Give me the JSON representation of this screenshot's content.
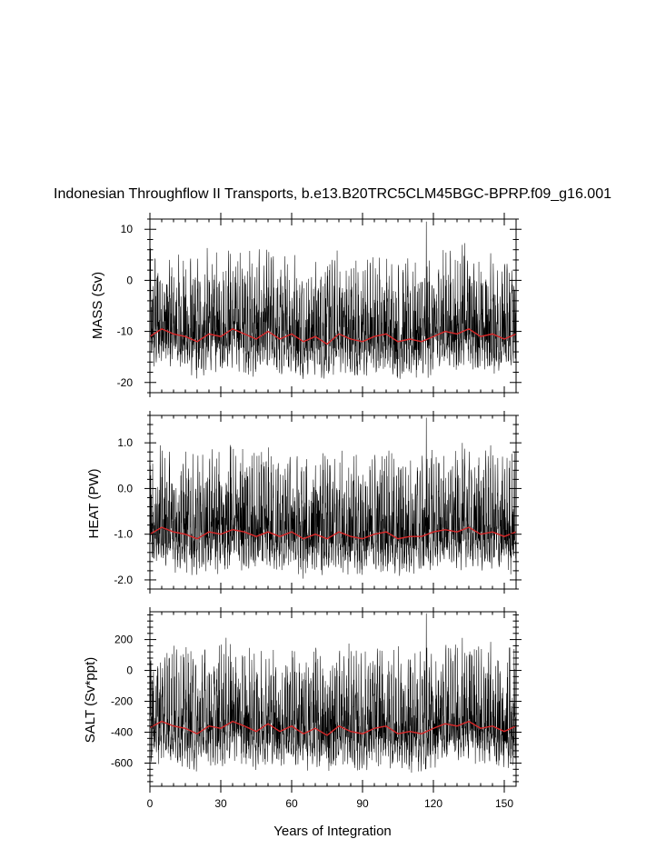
{
  "title": "Indonesian Throughflow II Transports, b.e13.B20TRC5CLM45BGC-BPRP.f09_g16.001",
  "xlabel": "Years of Integration",
  "xlim": [
    0,
    155
  ],
  "xticks": [
    0,
    30,
    60,
    90,
    120,
    150
  ],
  "xtick_labels": [
    "0",
    "30",
    "60",
    "90",
    "120",
    "150"
  ],
  "colors": {
    "monthly": "#000000",
    "annual": "#d62728",
    "frame": "#000000",
    "background": "#ffffff"
  },
  "chart_data": [
    {
      "type": "line",
      "ylabel": "MASS (Sv)",
      "ylim": [
        -22,
        12
      ],
      "yticks": [
        10,
        0,
        -10,
        -20
      ],
      "ytick_labels": [
        "10",
        "0",
        "-10",
        "-20"
      ],
      "x_range": [
        0,
        155
      ],
      "resolution": "monthly",
      "series": [
        {
          "style": "black thin line",
          "mean": -11.5,
          "min": -22,
          "max": 11.5,
          "notable_peaks": [
            {
              "x": 34,
              "y": 5.2
            },
            {
              "x": 76,
              "y": 2.0
            },
            {
              "x": 117,
              "y": 11.5
            },
            {
              "x": 133,
              "y": 4.8
            }
          ]
        },
        {
          "style": "red line (annual mean)",
          "x": [
            0,
            5,
            10,
            15,
            20,
            25,
            30,
            35,
            40,
            45,
            50,
            55,
            60,
            65,
            70,
            75,
            80,
            85,
            90,
            95,
            100,
            105,
            110,
            115,
            120,
            125,
            130,
            135,
            140,
            145,
            150,
            155
          ],
          "values": [
            -11,
            -9.5,
            -10.5,
            -11,
            -12,
            -10.5,
            -11,
            -9.5,
            -10.5,
            -11.5,
            -10,
            -11.5,
            -10.5,
            -12,
            -11,
            -12.5,
            -10.5,
            -11.5,
            -12,
            -11,
            -10.5,
            -12,
            -11.5,
            -12,
            -11,
            -10,
            -10.5,
            -9.5,
            -11,
            -10.5,
            -11.5,
            -10.5
          ]
        }
      ]
    },
    {
      "type": "line",
      "ylabel": "HEAT (PW)",
      "ylim": [
        -2.2,
        1.6
      ],
      "yticks": [
        1.0,
        0.0,
        -1.0,
        -2.0
      ],
      "ytick_labels": [
        "1.0",
        "0.0",
        "-1.0",
        "-2.0"
      ],
      "x_range": [
        0,
        155
      ],
      "resolution": "monthly",
      "series": [
        {
          "style": "black thin line",
          "mean": -1.0,
          "min": -2.2,
          "max": 1.55,
          "notable_peaks": [
            {
              "x": 34,
              "y": 0.95
            },
            {
              "x": 117,
              "y": 1.55
            }
          ]
        },
        {
          "style": "red line (annual mean)",
          "x": [
            0,
            5,
            10,
            15,
            20,
            25,
            30,
            35,
            40,
            45,
            50,
            55,
            60,
            65,
            70,
            75,
            80,
            85,
            90,
            95,
            100,
            105,
            110,
            115,
            120,
            125,
            130,
            135,
            140,
            145,
            150,
            155
          ],
          "values": [
            -1.0,
            -0.85,
            -0.95,
            -1.0,
            -1.1,
            -0.95,
            -1.0,
            -0.9,
            -0.95,
            -1.05,
            -0.95,
            -1.05,
            -0.95,
            -1.1,
            -1.0,
            -1.1,
            -0.95,
            -1.05,
            -1.1,
            -1.0,
            -0.95,
            -1.1,
            -1.05,
            -1.05,
            -0.95,
            -0.9,
            -0.95,
            -0.85,
            -1.0,
            -0.95,
            -1.05,
            -0.95
          ]
        }
      ]
    },
    {
      "type": "line",
      "ylabel": "SALT (Sv*ppt)",
      "ylim": [
        -750,
        380
      ],
      "yticks": [
        200,
        0,
        -200,
        -400,
        -600
      ],
      "ytick_labels": [
        "200",
        "0",
        "-200",
        "-400",
        "-600"
      ],
      "x_range": [
        0,
        155
      ],
      "resolution": "monthly",
      "series": [
        {
          "style": "black thin line",
          "mean": -385,
          "min": -740,
          "max": 370,
          "notable_peaks": [
            {
              "x": 34,
              "y": 170
            },
            {
              "x": 117,
              "y": 370
            }
          ]
        },
        {
          "style": "red line (annual mean)",
          "x": [
            0,
            5,
            10,
            15,
            20,
            25,
            30,
            35,
            40,
            45,
            50,
            55,
            60,
            65,
            70,
            75,
            80,
            85,
            90,
            95,
            100,
            105,
            110,
            115,
            120,
            125,
            130,
            135,
            140,
            145,
            150,
            155
          ],
          "values": [
            -370,
            -330,
            -360,
            -375,
            -410,
            -360,
            -375,
            -330,
            -360,
            -395,
            -345,
            -395,
            -360,
            -410,
            -375,
            -420,
            -360,
            -395,
            -410,
            -375,
            -360,
            -410,
            -395,
            -410,
            -375,
            -345,
            -360,
            -330,
            -375,
            -360,
            -395,
            -360
          ]
        }
      ]
    }
  ]
}
